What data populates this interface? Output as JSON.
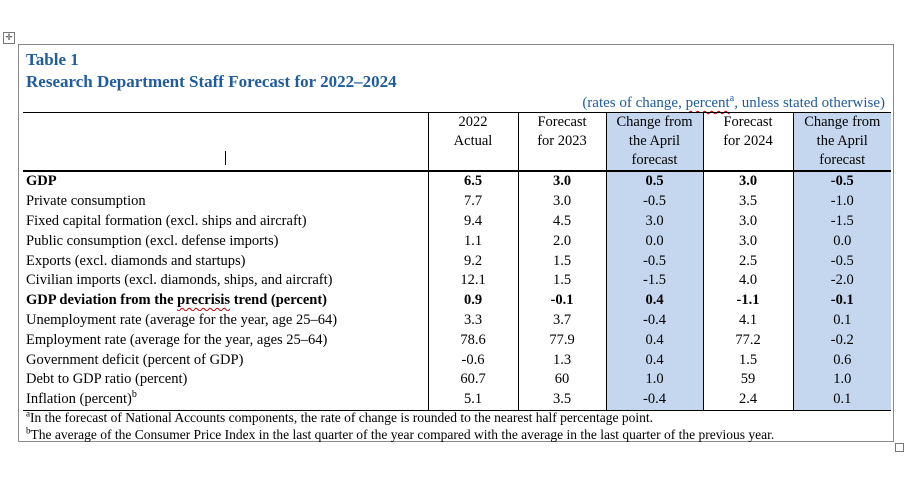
{
  "title": "Table 1",
  "subtitle": "Research Department Staff Forecast for 2022–2024",
  "units_note": {
    "prefix": "(rates of change, ",
    "underlined": "percent",
    "sup": "a",
    "suffix": ", unless stated otherwise)"
  },
  "columns": [
    {
      "line1": "2022",
      "line2": "Actual",
      "line3": ""
    },
    {
      "line1": "Forecast",
      "line2": "for 2023",
      "line3": ""
    },
    {
      "line1": "Change from",
      "line2": "the April",
      "line3": "forecast"
    },
    {
      "line1": "Forecast",
      "line2": "for 2024",
      "line3": ""
    },
    {
      "line1": "Change from",
      "line2": "the April",
      "line3": "forecast"
    }
  ],
  "rows": [
    {
      "label": "GDP",
      "bold": true,
      "values": [
        "6.5",
        "3.0",
        "0.5",
        "3.0",
        "-0.5"
      ],
      "bold_cols": [
        0,
        1,
        2,
        3,
        4
      ]
    },
    {
      "label": "Private consumption",
      "values": [
        "7.7",
        "3.0",
        "-0.5",
        "3.5",
        "-1.0"
      ]
    },
    {
      "label": "Fixed capital formation (excl. ships and aircraft)",
      "values": [
        "9.4",
        "4.5",
        "3.0",
        "3.0",
        "-1.5"
      ]
    },
    {
      "label": "Public consumption (excl. defense imports)",
      "values": [
        "1.1",
        "2.0",
        "0.0",
        "3.0",
        "0.0"
      ]
    },
    {
      "label": "Exports (excl. diamonds and startups)",
      "values": [
        "9.2",
        "1.5",
        "-0.5",
        "2.5",
        "-0.5"
      ]
    },
    {
      "label": "Civilian imports (excl. diamonds, ships, and aircraft)",
      "values": [
        "12.1",
        "1.5",
        "-1.5",
        "4.0",
        "-2.0"
      ]
    },
    {
      "label": "GDP deviation from the precrisis trend (percent)",
      "bold": true,
      "values": [
        "0.9",
        "-0.1",
        "0.4",
        "-1.1",
        "-0.1"
      ]
    },
    {
      "label": "Unemployment rate (average for the year, age 25–64)",
      "values": [
        "3.3",
        "3.7",
        "-0.4",
        "4.1",
        "0.1"
      ]
    },
    {
      "label": "Employment rate (average for the year, ages 25–64)",
      "values": [
        "78.6",
        "77.9",
        "0.4",
        "77.2",
        "-0.2"
      ]
    },
    {
      "label": "Government deficit (percent of GDP)",
      "values": [
        "-0.6",
        "1.3",
        "0.4",
        "1.5",
        "0.6"
      ]
    },
    {
      "label": "Debt to GDP ratio (percent)",
      "values": [
        "60.7",
        "60",
        "1.0",
        "59",
        "1.0"
      ]
    },
    {
      "label": "Inflation (percent)",
      "label_sup": "b",
      "values": [
        "5.1",
        "3.5",
        "-0.4",
        "2.4",
        "0.1"
      ]
    }
  ],
  "footnotes": [
    {
      "mark": "a",
      "text": "In the forecast of National Accounts components, the rate of change is rounded to the nearest half percentage point."
    },
    {
      "mark": "b",
      "text": "The average of the Consumer Price Index in the last quarter of the year compared with the average in the last quarter of the previous year."
    }
  ],
  "colors": {
    "title": "#1f5c9e",
    "shade": "#c5d7ee"
  },
  "icons": {
    "move_handle": "move-handle-icon",
    "resize_handle": "resize-handle-icon"
  }
}
